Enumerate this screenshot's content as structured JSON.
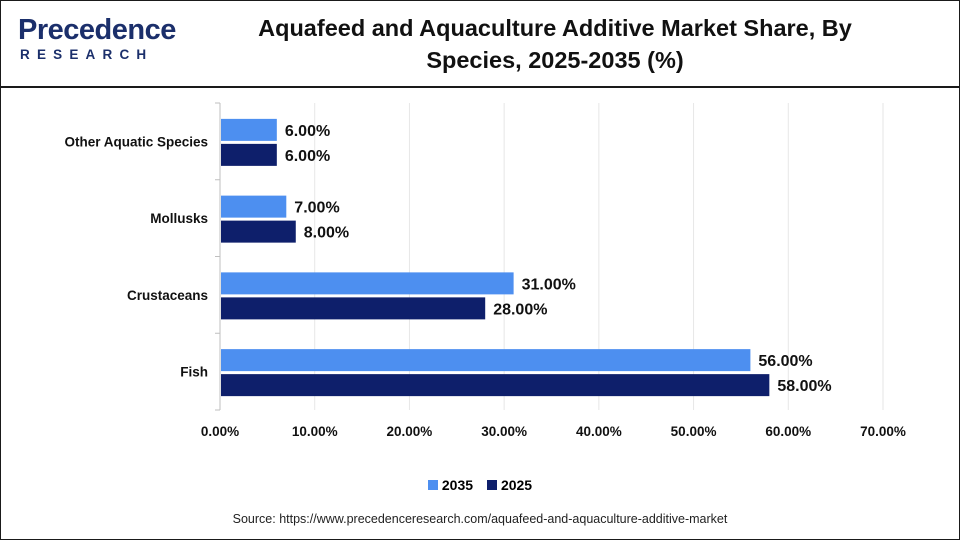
{
  "header": {
    "logo_word": "Precedence",
    "logo_sub": "RESEARCH",
    "title_line1": "Aquafeed and Aquaculture Additive Market Share, By",
    "title_line2": "Species, 2025-2035 (%)"
  },
  "colors": {
    "series_2035": "#4d8ff0",
    "series_2025": "#0e1f6b",
    "brand": "#1b2f6b",
    "grid": "#e6e6e6"
  },
  "chart_data": {
    "type": "bar",
    "orientation": "horizontal",
    "title": "Aquafeed and Aquaculture Additive Market Share, By Species, 2025-2035 (%)",
    "categories": [
      "Other Aquatic Species",
      "Mollusks",
      "Crustaceans",
      "Fish"
    ],
    "series": [
      {
        "name": "2035",
        "values": [
          6,
          7,
          31,
          56
        ],
        "labels": [
          "6.00%",
          "7.00%",
          "31.00%",
          "56.00%"
        ]
      },
      {
        "name": "2025",
        "values": [
          6,
          8,
          28,
          58
        ],
        "labels": [
          "6.00%",
          "8.00%",
          "28.00%",
          "58.00%"
        ]
      }
    ],
    "xlim": [
      0,
      70
    ],
    "x_ticks": [
      "0.00%",
      "10.00%",
      "20.00%",
      "30.00%",
      "40.00%",
      "50.00%",
      "60.00%",
      "70.00%"
    ],
    "grid": true,
    "legend_position": "bottom"
  },
  "source": "Source: https://www.precedenceresearch.com/aquafeed-and-aquaculture-additive-market"
}
